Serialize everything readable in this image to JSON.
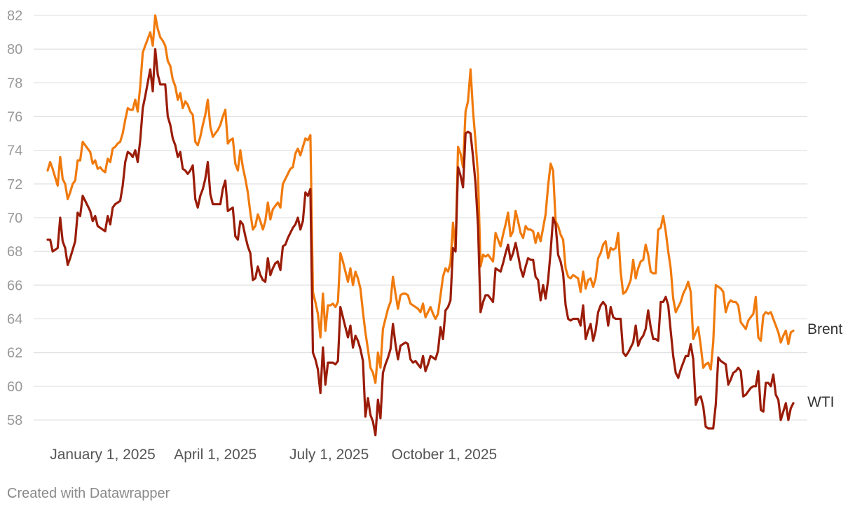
{
  "footer": "Created with Datawrapper",
  "chart_data": {
    "type": "line",
    "title": "",
    "xlabel": "",
    "ylabel": "",
    "ylim": [
      57,
      82
    ],
    "yticks": [
      58,
      60,
      62,
      64,
      66,
      68,
      70,
      72,
      74,
      76,
      78,
      80,
      82
    ],
    "grid": true,
    "x_start": "2024-11-18",
    "x_step_days": 2,
    "x_ticks": [
      {
        "date": "2025-01-01",
        "label": "January 1, 2025"
      },
      {
        "date": "2025-04-01",
        "label": "April 1, 2025"
      },
      {
        "date": "2025-07-01",
        "label": "July 1, 2025"
      },
      {
        "date": "2025-10-01",
        "label": "October 1, 2025"
      }
    ],
    "series": [
      {
        "name": "Brent",
        "label": "Brent",
        "color": "#f07a0c",
        "values": [
          72.8,
          73.3,
          72.9,
          72.4,
          71.9,
          73.6,
          72.3,
          72.0,
          71.1,
          71.5,
          72.0,
          72.2,
          73.4,
          73.4,
          74.5,
          74.3,
          74.1,
          73.9,
          73.2,
          73.4,
          72.9,
          73.0,
          72.8,
          72.7,
          73.5,
          73.3,
          74.1,
          74.2,
          74.4,
          74.5,
          75.0,
          75.8,
          76.5,
          76.4,
          76.4,
          77.0,
          76.3,
          77.8,
          79.8,
          80.2,
          80.6,
          81.0,
          80.2,
          82.0,
          81.2,
          80.7,
          80.5,
          80.2,
          79.3,
          79.0,
          78.2,
          77.8,
          77.0,
          77.4,
          76.5,
          76.9,
          76.7,
          76.3,
          76.1,
          74.5,
          74.3,
          74.8,
          75.5,
          76.1,
          77.0,
          75.4,
          74.8,
          75.0,
          75.2,
          75.5,
          76.0,
          76.4,
          74.4,
          74.6,
          74.7,
          73.2,
          72.8,
          74.0,
          73.0,
          72.3,
          71.5,
          70.3,
          69.3,
          69.5,
          70.2,
          69.8,
          69.3,
          69.8,
          70.9,
          69.9,
          70.5,
          70.7,
          70.9,
          70.6,
          72.0,
          72.3,
          72.6,
          72.9,
          73.0,
          73.8,
          74.1,
          73.7,
          74.2,
          74.7,
          74.6,
          74.9,
          65.6,
          65.0,
          64.3,
          62.9,
          65.5,
          63.3,
          64.8,
          64.8,
          64.9,
          64.7,
          65.0,
          67.9,
          67.4,
          66.8,
          66.2,
          67.0,
          66.0,
          66.8,
          66.4,
          65.8,
          64.4,
          63.2,
          62.2,
          61.1,
          60.8,
          60.2,
          62.0,
          61.1,
          63.4,
          64.0,
          64.6,
          65.0,
          66.5,
          65.5,
          64.6,
          65.4,
          65.5,
          65.5,
          65.4,
          64.9,
          64.8,
          64.7,
          64.6,
          64.4,
          64.9,
          64.1,
          64.4,
          64.7,
          64.3,
          64.0,
          64.3,
          65.4,
          66.5,
          67.0,
          66.8,
          67.3,
          69.7,
          68.1,
          74.2,
          73.8,
          73.0,
          76.3,
          76.9,
          78.8,
          76.3,
          74.5,
          72.5,
          67.1,
          67.8,
          67.7,
          67.8,
          67.6,
          67.4,
          69.1,
          68.7,
          68.3,
          69.0,
          69.6,
          70.3,
          68.9,
          69.2,
          70.4,
          69.8,
          69.1,
          68.8,
          69.5,
          69.3,
          69.3,
          69.2,
          68.5,
          69.1,
          68.6,
          69.4,
          70.2,
          71.9,
          73.2,
          72.8,
          69.8,
          69.5,
          69.0,
          68.7,
          67.0,
          66.5,
          66.4,
          66.6,
          66.5,
          66.4,
          65.6,
          66.8,
          65.8,
          66.3,
          66.4,
          65.9,
          66.4,
          67.6,
          67.9,
          68.4,
          68.6,
          67.6,
          68.2,
          68.1,
          68.2,
          69.1,
          66.8,
          65.5,
          65.6,
          65.9,
          66.3,
          67.5,
          66.4,
          67.0,
          67.4,
          67.5,
          68.4,
          67.8,
          66.8,
          66.7,
          66.7,
          69.3,
          69.4,
          70.1,
          69.2,
          68.0,
          67.0,
          65.2,
          64.4,
          64.7,
          65.0,
          65.5,
          65.8,
          66.2,
          65.6,
          62.8,
          63.2,
          63.5,
          62.4,
          61.1,
          61.3,
          61.4,
          61.0,
          62.6,
          66.0,
          65.9,
          65.8,
          65.6,
          64.4,
          64.9,
          65.1,
          65.0,
          65.0,
          64.8,
          63.8,
          63.6,
          63.4,
          63.9,
          64.1,
          64.3,
          65.3,
          62.9,
          62.7,
          64.2,
          64.4,
          64.3,
          64.4,
          64.0,
          63.6,
          63.2,
          62.6,
          63.0,
          63.3,
          62.5,
          63.2,
          63.3
        ]
      },
      {
        "name": "WTI",
        "label": "WTI",
        "color": "#9a1c08",
        "values": [
          68.7,
          68.7,
          68.0,
          68.1,
          68.2,
          70.0,
          68.6,
          68.2,
          67.2,
          67.6,
          68.1,
          68.6,
          70.3,
          70.1,
          71.3,
          71.0,
          70.7,
          70.4,
          69.8,
          70.1,
          69.5,
          69.4,
          69.3,
          69.2,
          70.1,
          69.6,
          70.6,
          70.8,
          70.9,
          71.0,
          71.9,
          73.3,
          73.9,
          73.8,
          73.6,
          74.0,
          73.3,
          74.6,
          76.5,
          77.2,
          78.0,
          78.8,
          77.5,
          80.0,
          78.5,
          77.9,
          77.9,
          77.9,
          76.0,
          75.5,
          74.7,
          74.3,
          73.6,
          73.9,
          72.9,
          72.8,
          72.6,
          72.8,
          73.1,
          71.1,
          70.6,
          71.3,
          71.7,
          72.3,
          73.3,
          71.4,
          70.8,
          70.8,
          70.8,
          70.8,
          71.7,
          72.2,
          70.4,
          70.5,
          70.6,
          68.9,
          68.7,
          69.8,
          69.6,
          68.9,
          68.3,
          67.9,
          66.3,
          66.4,
          67.1,
          66.6,
          66.3,
          66.2,
          67.6,
          66.6,
          67.0,
          67.3,
          67.4,
          66.9,
          68.3,
          68.4,
          68.8,
          69.1,
          69.4,
          69.6,
          70.0,
          69.3,
          69.8,
          71.5,
          71.3,
          71.7,
          62.0,
          61.6,
          61.0,
          59.6,
          62.3,
          60.1,
          61.4,
          61.4,
          61.4,
          61.3,
          61.5,
          64.7,
          64.1,
          63.5,
          62.9,
          63.6,
          62.3,
          63.0,
          62.7,
          62.2,
          61.5,
          58.2,
          59.3,
          58.3,
          57.9,
          57.1,
          59.2,
          58.1,
          60.8,
          61.3,
          61.7,
          62.2,
          63.7,
          62.5,
          61.6,
          62.4,
          62.5,
          62.6,
          62.5,
          61.6,
          61.4,
          61.5,
          61.3,
          61.1,
          61.8,
          60.9,
          61.3,
          61.8,
          61.7,
          61.6,
          62.1,
          63.5,
          62.8,
          64.5,
          64.7,
          65.1,
          68.2,
          68.0,
          73.0,
          72.5,
          71.8,
          75.0,
          75.1,
          75.0,
          73.6,
          72.0,
          69.5,
          64.4,
          65.0,
          65.4,
          65.4,
          65.2,
          65.0,
          67.0,
          66.9,
          66.8,
          67.3,
          67.9,
          68.4,
          67.5,
          67.9,
          68.5,
          67.8,
          67.0,
          66.5,
          67.1,
          67.6,
          67.5,
          67.5,
          66.5,
          66.3,
          65.1,
          66.0,
          65.2,
          66.3,
          68.0,
          70.0,
          69.6,
          67.8,
          67.4,
          66.7,
          64.8,
          64.0,
          63.9,
          64.0,
          64.0,
          64.0,
          63.6,
          64.8,
          62.8,
          63.3,
          63.7,
          62.7,
          63.3,
          64.4,
          64.8,
          65.0,
          64.8,
          63.6,
          64.7,
          64.1,
          64.0,
          64.0,
          64.0,
          62.0,
          61.8,
          62.0,
          62.3,
          62.6,
          63.6,
          62.4,
          62.8,
          63.0,
          63.4,
          64.5,
          63.5,
          62.8,
          62.8,
          62.7,
          65.0,
          65.0,
          65.3,
          64.8,
          63.3,
          61.8,
          60.8,
          60.5,
          61.0,
          61.4,
          61.8,
          61.8,
          62.5,
          61.6,
          58.9,
          59.3,
          59.4,
          58.8,
          57.6,
          57.5,
          57.5,
          57.5,
          58.9,
          61.7,
          61.5,
          61.4,
          61.3,
          60.1,
          60.4,
          60.8,
          60.9,
          61.1,
          60.9,
          59.4,
          59.5,
          59.7,
          59.9,
          60.0,
          60.0,
          60.9,
          58.6,
          58.5,
          60.2,
          60.2,
          60.0,
          60.7,
          59.5,
          59.2,
          58.0,
          58.5,
          59.0,
          58.0,
          58.7,
          59.0
        ]
      }
    ]
  }
}
